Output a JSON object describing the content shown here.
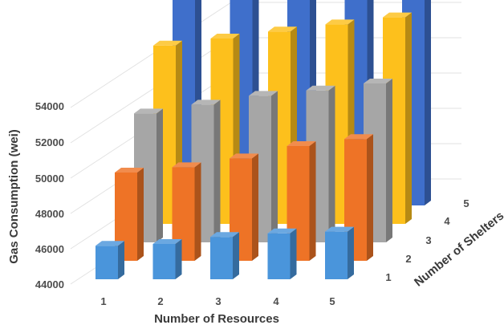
{
  "chart_data": {
    "type": "bar3d",
    "xlabel": "Number of Resources",
    "ylabel": "Gas Consumption (wei)",
    "zlabel": "Number of Shelters",
    "x_categories": [
      "1",
      "2",
      "3",
      "4",
      "5"
    ],
    "y_ticks": [
      "44000",
      "46000",
      "48000",
      "50000",
      "52000",
      "54000"
    ],
    "ylim": [
      44000,
      57000
    ],
    "grid": true,
    "series": [
      {
        "shelter": "1",
        "color": "#4a95db",
        "values": [
          45900,
          46000,
          46400,
          46600,
          46700
        ]
      },
      {
        "shelter": "2",
        "color": "#ee7326",
        "values": [
          49000,
          49300,
          49800,
          50500,
          50900
        ]
      },
      {
        "shelter": "3",
        "color": "#a6a6a6",
        "values": [
          51300,
          51800,
          52300,
          52600,
          53000
        ]
      },
      {
        "shelter": "4",
        "color": "#fdc01c",
        "values": [
          54100,
          54500,
          54900,
          55300,
          55700
        ]
      },
      {
        "shelter": "5",
        "color": "#3f6fcb",
        "values": [
          55800,
          56100,
          56300,
          56500,
          56800
        ]
      }
    ]
  }
}
